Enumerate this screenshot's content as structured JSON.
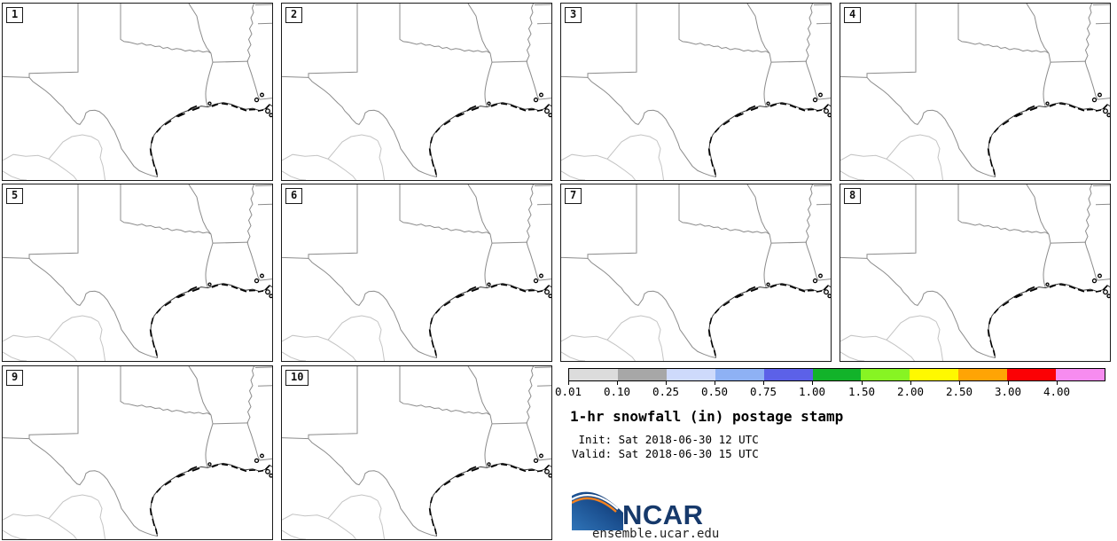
{
  "panels": [
    {
      "label": "1"
    },
    {
      "label": "2"
    },
    {
      "label": "3"
    },
    {
      "label": "4"
    },
    {
      "label": "5"
    },
    {
      "label": "6"
    },
    {
      "label": "7"
    },
    {
      "label": "8"
    },
    {
      "label": "9"
    },
    {
      "label": "10"
    }
  ],
  "legend": {
    "colorbar": {
      "tick_labels": [
        "0.01",
        "0.10",
        "0.25",
        "0.50",
        "0.75",
        "1.00",
        "1.50",
        "2.00",
        "2.50",
        "3.00",
        "4.00"
      ],
      "colors": [
        "#dcdcdc",
        "#a7a7a7",
        "#cedafb",
        "#8eb1f4",
        "#5c61e8",
        "#12b32a",
        "#87f423",
        "#fff900",
        "#ffa405",
        "#fb0105",
        "#f78cf0"
      ]
    },
    "title": "1-hr snowfall (in) postage stamp",
    "init_line": " Init: Sat 2018-06-30 12 UTC",
    "valid_line": "Valid: Sat 2018-06-30 15 UTC"
  },
  "branding": {
    "logo_text": "NCAR",
    "site": "ensemble.ucar.edu",
    "logo_navy": "#0c2d5e",
    "logo_blue": "#2f74b8",
    "logo_orange": "#f5821f"
  }
}
